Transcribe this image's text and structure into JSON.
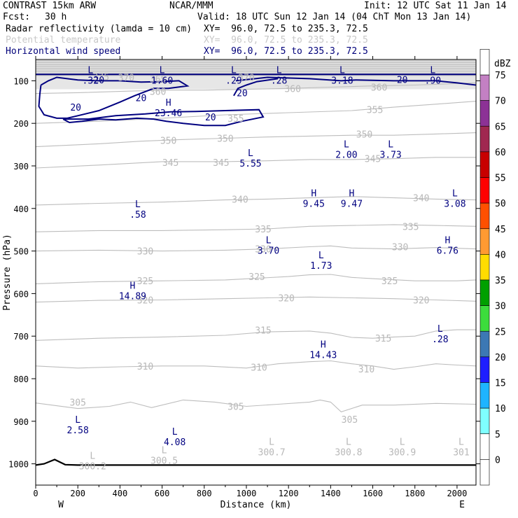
{
  "header": {
    "title": "CONTRAST 15km ARW",
    "org": "NCAR/MMM",
    "init": "Init: 12 UTC Sat 11 Jan 14",
    "fcst_label": "Fcst:",
    "fcst_value": "30 h",
    "valid": "Valid: 18 UTC Sun 12 Jan 14 (04 ChT Mon 13 Jan 14)",
    "fields": [
      {
        "name": "Radar reflectivity (lamda = 10 cm)",
        "xy": "XY=  96.0, 72.5 to 235.3, 72.5",
        "color": "#000000"
      },
      {
        "name": "Potential temperature",
        "xy": "XY=  96.0, 72.5 to 235.3, 72.5",
        "color": "#c8c8c8"
      },
      {
        "name": "Horizontal wind speed",
        "xy": "XY=  96.0, 72.5 to 235.3, 72.5",
        "color": "#00007a"
      }
    ]
  },
  "chart_data": {
    "type": "cross-section",
    "xlabel": "Distance (km)",
    "ylabel": "Pressure (hPa)",
    "xlim": [
      0,
      2090
    ],
    "ylim": [
      1050,
      50
    ],
    "x_ticks": [
      0,
      200,
      400,
      600,
      800,
      1000,
      1200,
      1400,
      1600,
      1800,
      2000
    ],
    "y_ticks": [
      100,
      200,
      300,
      400,
      500,
      600,
      700,
      800,
      900,
      1000
    ],
    "x_ends": {
      "left": "W",
      "right": "E"
    },
    "theta_contours": [
      {
        "value": 300,
        "points": [
          [
            0,
            1000
          ],
          [
            2090,
            1000
          ]
        ]
      },
      {
        "value": 305,
        "points": [
          [
            0,
            857
          ],
          [
            200,
            870
          ],
          [
            350,
            865
          ],
          [
            450,
            855
          ],
          [
            550,
            868
          ],
          [
            700,
            850
          ],
          [
            850,
            855
          ],
          [
            1000,
            865
          ],
          [
            1150,
            860
          ],
          [
            1300,
            855
          ],
          [
            1350,
            850
          ],
          [
            1400,
            855
          ],
          [
            1450,
            878
          ],
          [
            1550,
            862
          ],
          [
            1700,
            862
          ],
          [
            1900,
            858
          ],
          [
            2090,
            860
          ]
        ]
      },
      {
        "value": 310,
        "points": [
          [
            0,
            770
          ],
          [
            200,
            775
          ],
          [
            400,
            772
          ],
          [
            600,
            770
          ],
          [
            800,
            770
          ],
          [
            1000,
            775
          ],
          [
            1150,
            765
          ],
          [
            1300,
            760
          ],
          [
            1400,
            758
          ],
          [
            1500,
            765
          ],
          [
            1600,
            770
          ],
          [
            1700,
            778
          ],
          [
            1800,
            772
          ],
          [
            1900,
            765
          ],
          [
            2000,
            768
          ],
          [
            2090,
            770
          ]
        ]
      },
      {
        "value": 315,
        "points": [
          [
            0,
            710
          ],
          [
            300,
            705
          ],
          [
            600,
            702
          ],
          [
            900,
            698
          ],
          [
            1100,
            690
          ],
          [
            1300,
            688
          ],
          [
            1400,
            693
          ],
          [
            1500,
            703
          ],
          [
            1600,
            705
          ],
          [
            1700,
            702
          ],
          [
            1800,
            700
          ],
          [
            1900,
            688
          ],
          [
            2000,
            685
          ],
          [
            2090,
            685
          ]
        ]
      },
      {
        "value": 320,
        "points": [
          [
            0,
            620
          ],
          [
            300,
            616
          ],
          [
            600,
            615
          ],
          [
            900,
            612
          ],
          [
            1100,
            610
          ],
          [
            1300,
            608
          ],
          [
            1500,
            610
          ],
          [
            1700,
            612
          ],
          [
            1900,
            615
          ],
          [
            2090,
            618
          ]
        ]
      },
      {
        "value": 325,
        "points": [
          [
            0,
            577
          ],
          [
            300,
            572
          ],
          [
            600,
            570
          ],
          [
            900,
            568
          ],
          [
            1200,
            560
          ],
          [
            1300,
            556
          ],
          [
            1400,
            555
          ],
          [
            1500,
            562
          ],
          [
            1600,
            565
          ],
          [
            1800,
            570
          ],
          [
            2000,
            570
          ],
          [
            2090,
            568
          ]
        ]
      },
      {
        "value": 330,
        "points": [
          [
            0,
            500
          ],
          [
            300,
            498
          ],
          [
            600,
            500
          ],
          [
            900,
            498
          ],
          [
            1100,
            495
          ],
          [
            1300,
            490
          ],
          [
            1400,
            488
          ],
          [
            1500,
            493
          ],
          [
            1700,
            495
          ],
          [
            1900,
            492
          ],
          [
            2090,
            495
          ]
        ]
      },
      {
        "value": 335,
        "points": [
          [
            0,
            455
          ],
          [
            300,
            452
          ],
          [
            600,
            452
          ],
          [
            900,
            450
          ],
          [
            1100,
            448
          ],
          [
            1300,
            442
          ],
          [
            1500,
            440
          ],
          [
            1700,
            438
          ],
          [
            1900,
            440
          ],
          [
            2090,
            442
          ]
        ]
      },
      {
        "value": 340,
        "points": [
          [
            0,
            392
          ],
          [
            300,
            388
          ],
          [
            600,
            385
          ],
          [
            900,
            380
          ],
          [
            1100,
            378
          ],
          [
            1300,
            375
          ],
          [
            1500,
            372
          ],
          [
            1700,
            375
          ],
          [
            1900,
            378
          ],
          [
            2090,
            380
          ]
        ]
      },
      {
        "value": 345,
        "points": [
          [
            0,
            305
          ],
          [
            300,
            298
          ],
          [
            600,
            290
          ],
          [
            900,
            290
          ],
          [
            1100,
            288
          ],
          [
            1300,
            285
          ],
          [
            1500,
            285
          ],
          [
            1700,
            283
          ],
          [
            1900,
            280
          ],
          [
            2090,
            280
          ]
        ]
      },
      {
        "value": 350,
        "points": [
          [
            0,
            255
          ],
          [
            300,
            248
          ],
          [
            500,
            242
          ],
          [
            700,
            238
          ],
          [
            900,
            235
          ],
          [
            1100,
            232
          ],
          [
            1300,
            230
          ],
          [
            1500,
            228
          ],
          [
            1700,
            228
          ],
          [
            1900,
            225
          ],
          [
            2090,
            222
          ]
        ]
      },
      {
        "value": 355,
        "points": [
          [
            0,
            200
          ],
          [
            300,
            195
          ],
          [
            600,
            188
          ],
          [
            900,
            180
          ],
          [
            1200,
            175
          ],
          [
            1500,
            170
          ],
          [
            1700,
            162
          ],
          [
            1900,
            155
          ],
          [
            2090,
            148
          ]
        ]
      },
      {
        "value": 360,
        "points": [
          [
            0,
            130
          ],
          [
            200,
            128
          ],
          [
            400,
            125
          ],
          [
            600,
            122
          ],
          [
            800,
            122
          ],
          [
            1000,
            120
          ],
          [
            1200,
            118
          ],
          [
            1400,
            115
          ],
          [
            1600,
            112
          ],
          [
            1800,
            110
          ],
          [
            2090,
            105
          ]
        ]
      }
    ],
    "wind_20_contours": [
      [
        [
          0,
          85
        ],
        [
          2090,
          85
        ]
      ],
      [
        [
          25,
          110
        ],
        [
          60,
          100
        ],
        [
          100,
          92
        ],
        [
          200,
          98
        ],
        [
          300,
          100
        ],
        [
          400,
          100
        ],
        [
          500,
          103
        ],
        [
          600,
          102
        ],
        [
          680,
          100
        ],
        [
          720,
          112
        ],
        [
          630,
          118
        ],
        [
          560,
          118
        ],
        [
          470,
          135
        ],
        [
          400,
          150
        ],
        [
          300,
          170
        ],
        [
          200,
          182
        ],
        [
          150,
          188
        ],
        [
          100,
          188
        ],
        [
          40,
          180
        ],
        [
          15,
          160
        ],
        [
          20,
          130
        ],
        [
          25,
          110
        ]
      ],
      [
        [
          130,
          190
        ],
        [
          250,
          190
        ],
        [
          380,
          182
        ],
        [
          520,
          178
        ],
        [
          640,
          173
        ],
        [
          760,
          172
        ],
        [
          900,
          170
        ],
        [
          1060,
          168
        ],
        [
          1080,
          185
        ],
        [
          980,
          195
        ],
        [
          900,
          205
        ],
        [
          800,
          205
        ],
        [
          700,
          200
        ],
        [
          620,
          195
        ],
        [
          560,
          190
        ],
        [
          480,
          188
        ],
        [
          380,
          192
        ],
        [
          300,
          190
        ],
        [
          220,
          195
        ],
        [
          160,
          198
        ],
        [
          130,
          190
        ]
      ],
      [
        [
          950,
          100
        ],
        [
          1100,
          92
        ],
        [
          1300,
          95
        ],
        [
          1450,
          100
        ],
        [
          1520,
          98
        ],
        [
          1700,
          100
        ],
        [
          1800,
          100
        ],
        [
          1900,
          100
        ],
        [
          2000,
          105
        ],
        [
          2090,
          110
        ]
      ],
      [
        [
          940,
          135
        ],
        [
          960,
          118
        ],
        [
          1000,
          110
        ],
        [
          1050,
          102
        ],
        [
          1150,
          95
        ]
      ]
    ],
    "extrema": [
      {
        "type": "L",
        "value": ".32",
        "x": 260,
        "y": 85
      },
      {
        "type": "L",
        "value": "1.60",
        "x": 600,
        "y": 85
      },
      {
        "type": "L",
        "value": ".29",
        "x": 940,
        "y": 85
      },
      {
        "type": "L",
        "value": ".28",
        "x": 1155,
        "y": 85
      },
      {
        "type": "L",
        "value": "3.18",
        "x": 1455,
        "y": 85
      },
      {
        "type": "L",
        "value": ".90",
        "x": 1885,
        "y": 85
      },
      {
        "type": "H",
        "value": "23.46",
        "x": 630,
        "y": 162
      },
      {
        "type": "L",
        "value": "2.00",
        "x": 1475,
        "y": 260
      },
      {
        "type": "L",
        "value": "3.73",
        "x": 1685,
        "y": 260
      },
      {
        "type": "L",
        "value": "5.55",
        "x": 1020,
        "y": 280
      },
      {
        "type": "H",
        "value": "9.45",
        "x": 1320,
        "y": 375
      },
      {
        "type": "H",
        "value": "9.47",
        "x": 1500,
        "y": 375
      },
      {
        "type": "L",
        "value": "3.08",
        "x": 1990,
        "y": 375
      },
      {
        "type": "L",
        "value": ".58",
        "x": 485,
        "y": 400
      },
      {
        "type": "L",
        "value": "3.70",
        "x": 1105,
        "y": 485
      },
      {
        "type": "H",
        "value": "6.76",
        "x": 1955,
        "y": 485
      },
      {
        "type": "L",
        "value": "1.73",
        "x": 1355,
        "y": 520
      },
      {
        "type": "H",
        "value": "14.89",
        "x": 460,
        "y": 592
      },
      {
        "type": "L",
        "value": ".28",
        "x": 1920,
        "y": 693
      },
      {
        "type": "H",
        "value": "14.43",
        "x": 1365,
        "y": 730
      },
      {
        "type": "L",
        "value": "2.58",
        "x": 200,
        "y": 907
      },
      {
        "type": "L",
        "value": "4.08",
        "x": 660,
        "y": 935
      }
    ],
    "surface_theta_labels": [
      {
        "value": "300.2",
        "x": 270,
        "y": 998
      },
      {
        "value": "300.5",
        "x": 610,
        "y": 985
      },
      {
        "value": "300.7",
        "x": 1120,
        "y": 965
      },
      {
        "value": "300.8",
        "x": 1485,
        "y": 965
      },
      {
        "value": "300.9",
        "x": 1740,
        "y": 965
      },
      {
        "value": "301",
        "x": 2020,
        "y": 965
      }
    ],
    "colorbar": {
      "title": "dBZ",
      "levels": [
        {
          "value": 0,
          "color": "#ffffff"
        },
        {
          "value": 5,
          "color": "#ffffff"
        },
        {
          "value": 10,
          "color": "#7fffff"
        },
        {
          "value": 15,
          "color": "#1eb4ff"
        },
        {
          "value": 20,
          "color": "#1e1eff"
        },
        {
          "value": 25,
          "color": "#3c78b4"
        },
        {
          "value": 30,
          "color": "#3cdc3c"
        },
        {
          "value": 35,
          "color": "#00a000"
        },
        {
          "value": 40,
          "color": "#ffdc00"
        },
        {
          "value": 45,
          "color": "#ff9a32"
        },
        {
          "value": 50,
          "color": "#ff5000"
        },
        {
          "value": 55,
          "color": "#ff0000"
        },
        {
          "value": 60,
          "color": "#c80000"
        },
        {
          "value": 65,
          "color": "#a02850"
        },
        {
          "value": 70,
          "color": "#8c3296"
        },
        {
          "value": 75,
          "color": "#c380c3"
        }
      ]
    }
  }
}
